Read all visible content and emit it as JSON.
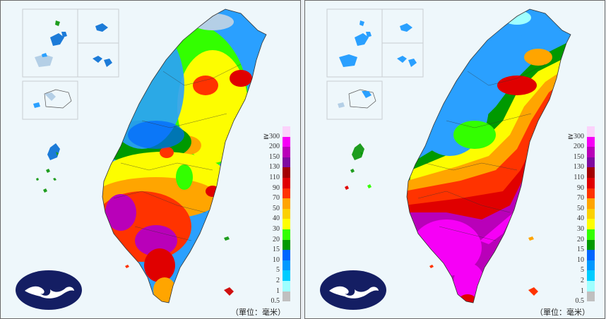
{
  "panels": [
    {
      "id": "left",
      "unit_label": "（單位：毫米）"
    },
    {
      "id": "right",
      "unit_label": "（單位：毫米）"
    }
  ],
  "legend": {
    "levels": [
      {
        "label": "≧300",
        "color": "#fbd2fb"
      },
      {
        "label": "200",
        "color": "#f600f6"
      },
      {
        "label": "150",
        "color": "#b900b9"
      },
      {
        "label": "130",
        "color": "#7f0aa0"
      },
      {
        "label": "110",
        "color": "#a30000"
      },
      {
        "label": "90",
        "color": "#e00000"
      },
      {
        "label": "70",
        "color": "#ff3300"
      },
      {
        "label": "50",
        "color": "#ffa500"
      },
      {
        "label": "40",
        "color": "#fbd100"
      },
      {
        "label": "30",
        "color": "#fdfd00"
      },
      {
        "label": "20",
        "color": "#33ff00"
      },
      {
        "label": "15",
        "color": "#009900"
      },
      {
        "label": "10",
        "color": "#0066ff"
      },
      {
        "label": "5",
        "color": "#0099ff"
      },
      {
        "label": "2",
        "color": "#00ccff"
      },
      {
        "label": "1",
        "color": "#9fffff"
      },
      {
        "label": "0.5",
        "color": "#c0c0c0"
      }
    ]
  },
  "colors": {
    "background": "#eef7fb",
    "logo_fill": "#141e63",
    "border": "#6a6a6a"
  }
}
